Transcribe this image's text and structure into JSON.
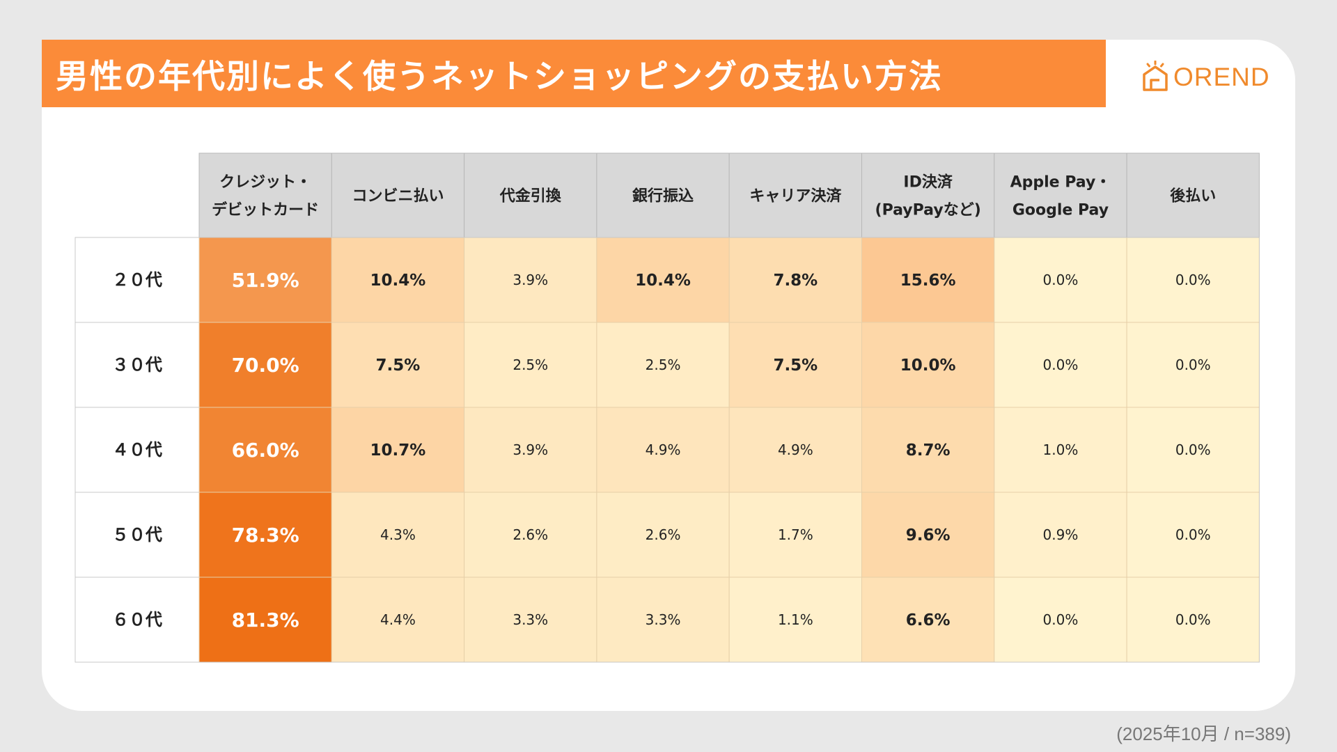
{
  "title": "男性の年代別によく使うネットショッピングの支払い方法",
  "logo": {
    "text": "OREND",
    "icon": "house-outline-icon",
    "color": "#f08a2c"
  },
  "footnote": "(2025年10月 / n=389)",
  "colors": {
    "banner": "#fb8b39",
    "header_bg": "#d8d8d8",
    "scale": [
      "#fff3cf",
      "#fcc994",
      "#ee7016"
    ]
  },
  "chart_data": {
    "type": "table",
    "style": "heatmap",
    "title": "男性の年代別によく使うネットショッピングの支払い方法",
    "unit": "%",
    "columns": [
      [
        "クレジット・",
        "デビットカード"
      ],
      [
        "コンビニ払い"
      ],
      [
        "代金引換"
      ],
      [
        "銀行振込"
      ],
      [
        "キャリア決済"
      ],
      [
        "ID決済",
        "(PayPayなど)"
      ],
      [
        "Apple Pay・",
        "Google Pay"
      ],
      [
        "後払い"
      ]
    ],
    "rows": [
      {
        "label": "２０代",
        "values": [
          51.9,
          10.4,
          3.9,
          10.4,
          7.8,
          15.6,
          0.0,
          0.0
        ]
      },
      {
        "label": "３０代",
        "values": [
          70.0,
          7.5,
          2.5,
          2.5,
          7.5,
          10.0,
          0.0,
          0.0
        ]
      },
      {
        "label": "４０代",
        "values": [
          66.0,
          10.7,
          3.9,
          4.9,
          4.9,
          8.7,
          1.0,
          0.0
        ]
      },
      {
        "label": "５０代",
        "values": [
          78.3,
          4.3,
          2.6,
          2.6,
          1.7,
          9.6,
          0.9,
          0.0
        ]
      },
      {
        "label": "６０代",
        "values": [
          81.3,
          4.4,
          3.3,
          3.3,
          1.1,
          6.6,
          0.0,
          0.0
        ]
      }
    ],
    "bold_threshold": 5,
    "white_text_threshold": 40
  }
}
